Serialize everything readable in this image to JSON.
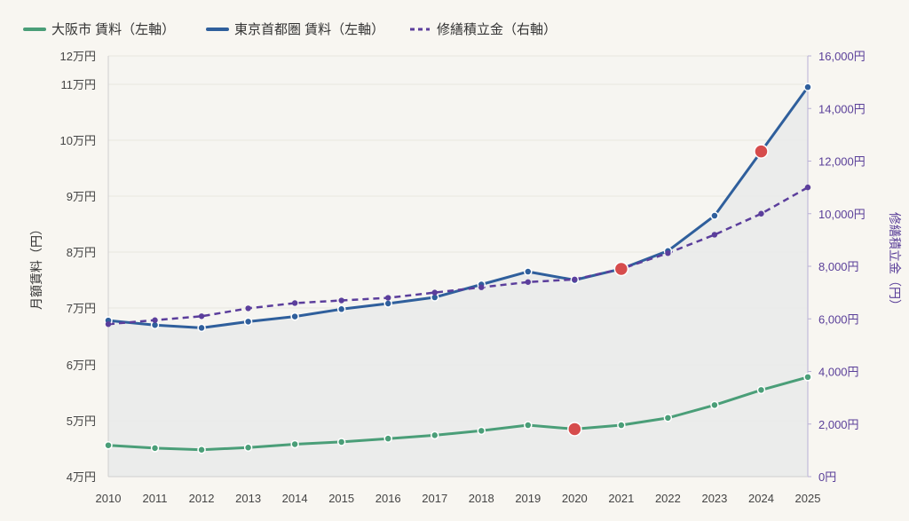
{
  "chart_data": {
    "type": "line",
    "x": [
      "2010",
      "2011",
      "2012",
      "2013",
      "2014",
      "2015",
      "2016",
      "2017",
      "2018",
      "2019",
      "2020",
      "2021",
      "2022",
      "2023",
      "2024",
      "2025"
    ],
    "y_left": {
      "label": "月額賃料（円）",
      "ticks": [
        {
          "value": 40000,
          "label": "4万円"
        },
        {
          "value": 50000,
          "label": "5万円"
        },
        {
          "value": 60000,
          "label": "6万円"
        },
        {
          "value": 70000,
          "label": "7万円"
        },
        {
          "value": 80000,
          "label": "8万円"
        },
        {
          "value": 90000,
          "label": "9万円"
        },
        {
          "value": 100000,
          "label": "10万円"
        },
        {
          "value": 110000,
          "label": "11万円"
        },
        {
          "value": 120000,
          "label": "12万円"
        }
      ]
    },
    "y_right": {
      "label": "修繕積立金（円）",
      "ylim": [
        0,
        16000
      ],
      "ticks": [
        {
          "value": 0,
          "label": "0円"
        },
        {
          "value": 2000,
          "label": "2,000円"
        },
        {
          "value": 4000,
          "label": "4,000円"
        },
        {
          "value": 6000,
          "label": "6,000円"
        },
        {
          "value": 8000,
          "label": "8,000円"
        },
        {
          "value": 10000,
          "label": "10,000円"
        },
        {
          "value": 12000,
          "label": "12,000円"
        },
        {
          "value": 14000,
          "label": "14,000円"
        },
        {
          "value": 16000,
          "label": "16,000円"
        }
      ]
    },
    "series": [
      {
        "name": "大阪市 賃料（左軸）",
        "axis": "left",
        "color": "#4a9e78",
        "style": "solid",
        "values": [
          45600,
          45100,
          44800,
          45200,
          45800,
          46200,
          46800,
          47400,
          48200,
          49200,
          48500,
          49200,
          50500,
          52800,
          55500,
          57800
        ],
        "highlights": [
          "2020"
        ]
      },
      {
        "name": "東京首都圏 賃料（左軸）",
        "axis": "left",
        "color": "#2f5f9c",
        "style": "solid",
        "values": [
          67800,
          67000,
          66500,
          67600,
          68500,
          69800,
          70800,
          71900,
          74200,
          76500,
          75000,
          77000,
          80200,
          86500,
          98000,
          109500
        ],
        "highlights": [
          "2024"
        ]
      },
      {
        "name": "修繕積立金（右軸）",
        "axis": "right",
        "color": "#5b3e9c",
        "style": "dashed",
        "values": [
          5800,
          5950,
          6100,
          6400,
          6600,
          6700,
          6800,
          7000,
          7200,
          7400,
          7500,
          7900,
          8500,
          9200,
          10000,
          11000
        ],
        "highlights": [
          "2021"
        ]
      }
    ],
    "highlight_color": "#d64c4c",
    "legend_position": "top-left",
    "grid": true
  }
}
